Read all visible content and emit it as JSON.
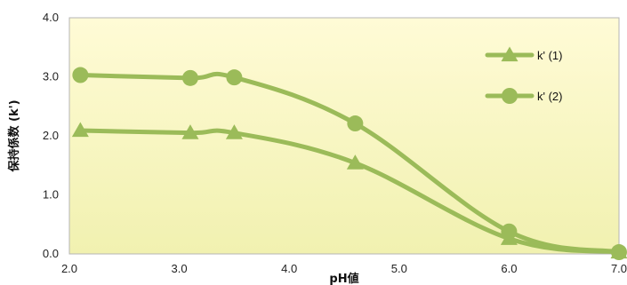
{
  "chart_data": {
    "type": "line",
    "xlabel": "pH値",
    "ylabel": "保持係数 (k')",
    "xlim": [
      2.0,
      7.0
    ],
    "ylim": [
      0.0,
      4.0
    ],
    "x_ticks": [
      "2.0",
      "3.0",
      "4.0",
      "5.0",
      "6.0",
      "7.0"
    ],
    "y_ticks": [
      "0.0",
      "1.0",
      "2.0",
      "3.0",
      "4.0"
    ],
    "grid": false,
    "legend_position": "right",
    "smooth": true,
    "series": [
      {
        "name": "k' (1)",
        "marker": "triangle",
        "color": "#9bbb59",
        "x": [
          2.1,
          3.1,
          3.5,
          4.6,
          6.0,
          7.0
        ],
        "y": [
          2.09,
          2.05,
          2.05,
          1.54,
          0.26,
          0.03
        ]
      },
      {
        "name": "k' (2)",
        "marker": "circle",
        "color": "#9bbb59",
        "x": [
          2.1,
          3.1,
          3.5,
          4.6,
          6.0,
          7.0
        ],
        "y": [
          3.03,
          2.98,
          2.99,
          2.21,
          0.38,
          0.03
        ]
      }
    ],
    "plot_background": [
      "#fffbd6",
      "#f1f1b0"
    ]
  }
}
